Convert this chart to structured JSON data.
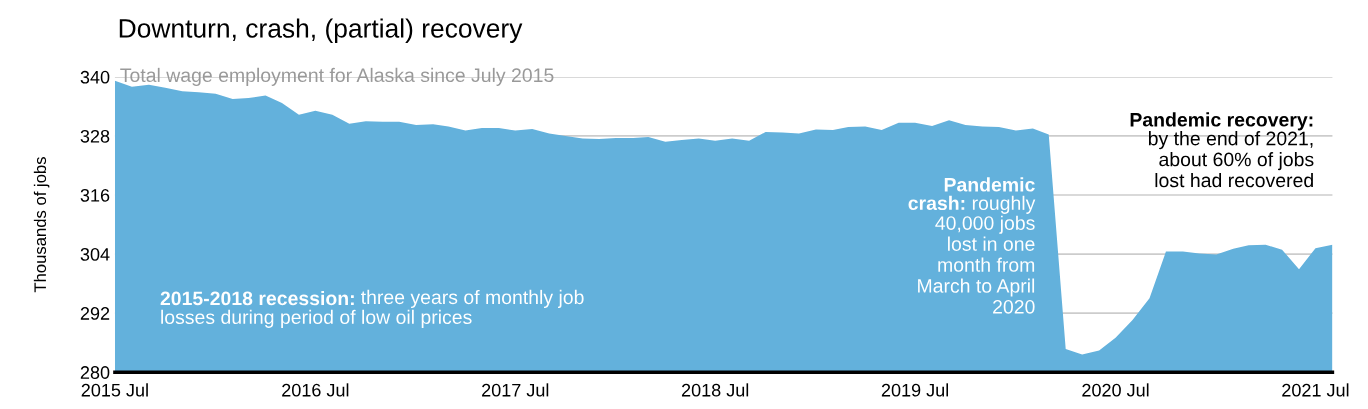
{
  "chart_data": {
    "type": "area",
    "title": "Downturn, crash, (partial) recovery",
    "subtitle": "Total wage employment for Alaska since July 2015",
    "ylabel": "Thousands of jobs",
    "x": [
      "2015-07",
      "2015-08",
      "2015-09",
      "2015-10",
      "2015-11",
      "2015-12",
      "2016-01",
      "2016-02",
      "2016-03",
      "2016-04",
      "2016-05",
      "2016-06",
      "2016-07",
      "2016-08",
      "2016-09",
      "2016-10",
      "2016-11",
      "2016-12",
      "2017-01",
      "2017-02",
      "2017-03",
      "2017-04",
      "2017-05",
      "2017-06",
      "2017-07",
      "2017-08",
      "2017-09",
      "2017-10",
      "2017-11",
      "2017-12",
      "2018-01",
      "2018-02",
      "2018-03",
      "2018-04",
      "2018-05",
      "2018-06",
      "2018-07",
      "2018-08",
      "2018-09",
      "2018-10",
      "2018-11",
      "2018-12",
      "2019-01",
      "2019-02",
      "2019-03",
      "2019-04",
      "2019-05",
      "2019-06",
      "2019-07",
      "2019-08",
      "2019-09",
      "2019-10",
      "2019-11",
      "2019-12",
      "2020-01",
      "2020-02",
      "2020-03",
      "2020-04",
      "2020-05",
      "2020-06",
      "2020-07",
      "2020-08",
      "2020-09",
      "2020-10",
      "2020-11",
      "2020-12",
      "2021-01",
      "2021-02",
      "2021-03",
      "2021-04",
      "2021-05",
      "2021-06",
      "2021-07",
      "2021-08"
    ],
    "series": [
      {
        "color": "#63b1dc",
        "values": [
          339.2,
          338.0,
          338.4,
          337.8,
          337.1,
          336.9,
          336.6,
          335.5,
          335.7,
          336.2,
          334.7,
          332.3,
          333.1,
          332.3,
          330.5,
          331.0,
          330.9,
          330.9,
          330.2,
          330.4,
          329.9,
          329.1,
          329.6,
          329.6,
          329.1,
          329.4,
          328.5,
          328.0,
          327.5,
          327.4,
          327.6,
          327.6,
          327.8,
          326.8,
          327.2,
          327.5,
          327.0,
          327.5,
          327.0,
          328.8,
          328.7,
          328.5,
          329.3,
          329.2,
          329.8,
          329.9,
          329.2,
          330.7,
          330.7,
          330.0,
          331.2,
          330.2,
          329.9,
          329.8,
          329.1,
          329.5,
          328.3,
          284.7,
          283.6,
          284.4,
          287.0,
          290.6,
          295.0,
          304.5,
          304.5,
          304.1,
          303.9,
          305.1,
          305.8,
          305.9,
          304.9,
          300.9,
          305.2,
          305.9
        ]
      }
    ],
    "xlim": [
      "2015-07",
      "2021-08"
    ],
    "xticks": [
      {
        "value": "2015-07",
        "label": "2015 Jul"
      },
      {
        "value": "2016-07",
        "label": "2016 Jul"
      },
      {
        "value": "2017-07",
        "label": "2017 Jul"
      },
      {
        "value": "2018-07",
        "label": "2018 Jul"
      },
      {
        "value": "2019-07",
        "label": "2019 Jul"
      },
      {
        "value": "2020-07",
        "label": "2020 Jul"
      },
      {
        "value": "2021-07",
        "label": "2021 Jul"
      }
    ],
    "ylim": [
      280,
      340
    ],
    "yticks": [
      280,
      292,
      304,
      316,
      328,
      340
    ],
    "grid": "y",
    "annotations": [
      "2015-2018 recession:",
      "three years of monthly job\nlosses during period of low oil prices",
      "Pandemic\ncrash:",
      "roughly\n40,000 jobs\nlost in one\nmonth from\nMarch to April\n2020",
      "Pandemic recovery:",
      "by the end of 2021,\nabout 60% of jobs\nlost had recovered"
    ]
  }
}
